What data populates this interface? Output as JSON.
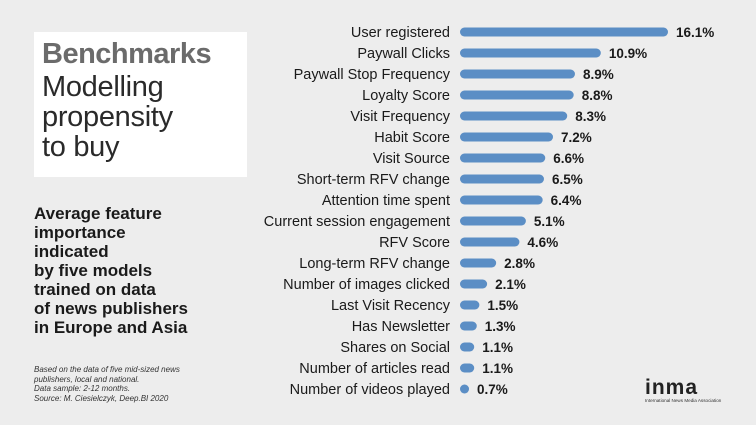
{
  "title": {
    "main": "Benchmarks",
    "lines": [
      "Modelling",
      "propensity",
      "to buy"
    ]
  },
  "description": [
    "Average feature",
    "importance",
    "indicated",
    "by five models",
    "trained on data",
    "of news publishers",
    "in Europe and Asia"
  ],
  "note": [
    "Based on the data of five mid-sized news",
    "publishers, local and national.",
    "Data sample: 2-12 months.",
    "Source: M. Ciesielczyk, Deep.BI 2020"
  ],
  "logo": {
    "word": "inma",
    "tagline": "International News Media Association"
  },
  "colors": {
    "bar": "#5b8ec5",
    "background": "#ededed"
  },
  "chart_data": {
    "type": "bar",
    "orientation": "horizontal",
    "categories": [
      "User registered",
      "Paywall Clicks",
      "Paywall Stop Frequency",
      "Loyalty Score",
      "Visit Frequency",
      "Habit Score",
      "Visit Source",
      "Short-term RFV change",
      "Attention time spent",
      "Current session engagement",
      "RFV Score",
      "Long-term RFV change",
      "Number of images clicked",
      "Last Visit Recency",
      "Has Newsletter",
      "Shares on Social",
      "Number of articles read",
      "Number of videos played"
    ],
    "values": [
      16.1,
      10.9,
      8.9,
      8.8,
      8.3,
      7.2,
      6.6,
      6.5,
      6.4,
      5.1,
      4.6,
      2.8,
      2.1,
      1.5,
      1.3,
      1.1,
      1.1,
      0.7
    ],
    "labels": [
      "16.1%",
      "10.9%",
      "8.9%",
      "8.8%",
      "8.3%",
      "7.2%",
      "6.6%",
      "6.5%",
      "6.4%",
      "5.1%",
      "4.6%",
      "2.8%",
      "2.1%",
      "1.5%",
      "1.3%",
      "1.1%",
      "1.1%",
      "0.7%"
    ],
    "xlim": [
      0,
      16.1
    ],
    "grid": false,
    "legend": "none"
  }
}
